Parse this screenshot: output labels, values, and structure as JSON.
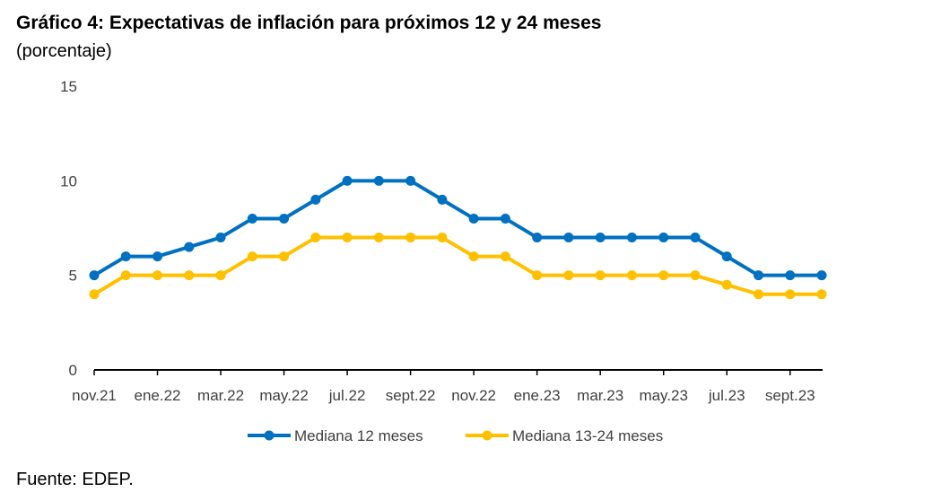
{
  "title": "Gráfico 4: Expectativas de inflación para próximos 12 y 24 meses",
  "subtitle": "(porcentaje)",
  "source": "Fuente: EDEP.",
  "chart_data": {
    "type": "line",
    "title": "Gráfico 4: Expectativas de inflación para próximos 12 y 24 meses",
    "subtitle": "(porcentaje)",
    "xlabel": "",
    "ylabel": "porcentaje",
    "ylim": [
      0,
      15
    ],
    "yticks": [
      0,
      5,
      10,
      15
    ],
    "grid": false,
    "legend_position": "bottom",
    "x": [
      "nov.21",
      "dic.21",
      "ene.22",
      "feb.22",
      "mar.22",
      "abr.22",
      "may.22",
      "jun.22",
      "jul.22",
      "ago.22",
      "sept.22",
      "oct.22",
      "nov.22",
      "dic.22",
      "ene.23",
      "feb.23",
      "mar.23",
      "abr.23",
      "may.23",
      "jun.23",
      "jul.23",
      "ago.23",
      "sept.23",
      "oct.23"
    ],
    "xtick_labels": [
      "nov.21",
      "ene.22",
      "mar.22",
      "may.22",
      "jul.22",
      "sept.22",
      "nov.22",
      "ene.23",
      "mar.23",
      "may.23",
      "jul.23",
      "sept.23"
    ],
    "series": [
      {
        "name": "Mediana 12 meses",
        "color": "#0070C0",
        "values": [
          5,
          6,
          6,
          6.5,
          7,
          8,
          8,
          9,
          10,
          10,
          10,
          9,
          8,
          8,
          7,
          7,
          7,
          7,
          7,
          7,
          6,
          5,
          5,
          5
        ]
      },
      {
        "name": "Mediana 13-24 meses",
        "color": "#FFC000",
        "values": [
          4,
          5,
          5,
          5,
          5,
          6,
          6,
          7,
          7,
          7,
          7,
          7,
          6,
          6,
          5,
          5,
          5,
          5,
          5,
          5,
          4.5,
          4,
          4,
          4
        ]
      }
    ]
  }
}
